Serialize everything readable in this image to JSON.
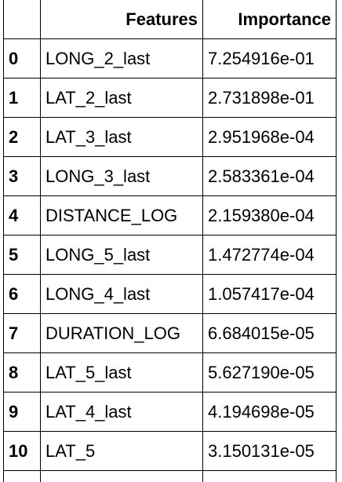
{
  "table": {
    "columns": [
      "",
      "Features",
      "Importance"
    ],
    "rows": [
      {
        "index": "0",
        "feature": "LONG_2_last",
        "importance": "7.254916e-01"
      },
      {
        "index": "1",
        "feature": "LAT_2_last",
        "importance": "2.731898e-01"
      },
      {
        "index": "2",
        "feature": "LAT_3_last",
        "importance": "2.951968e-04"
      },
      {
        "index": "3",
        "feature": "LONG_3_last",
        "importance": "2.583361e-04"
      },
      {
        "index": "4",
        "feature": "DISTANCE_LOG",
        "importance": "2.159380e-04"
      },
      {
        "index": "5",
        "feature": "LONG_5_last",
        "importance": "1.472774e-04"
      },
      {
        "index": "6",
        "feature": "LONG_4_last",
        "importance": "1.057417e-04"
      },
      {
        "index": "7",
        "feature": "DURATION_LOG",
        "importance": "6.684015e-05"
      },
      {
        "index": "8",
        "feature": "LAT_5_last",
        "importance": "5.627190e-05"
      },
      {
        "index": "9",
        "feature": "LAT_4_last",
        "importance": "4.194698e-05"
      },
      {
        "index": "10",
        "feature": "LAT_5",
        "importance": "3.150131e-05"
      }
    ]
  }
}
